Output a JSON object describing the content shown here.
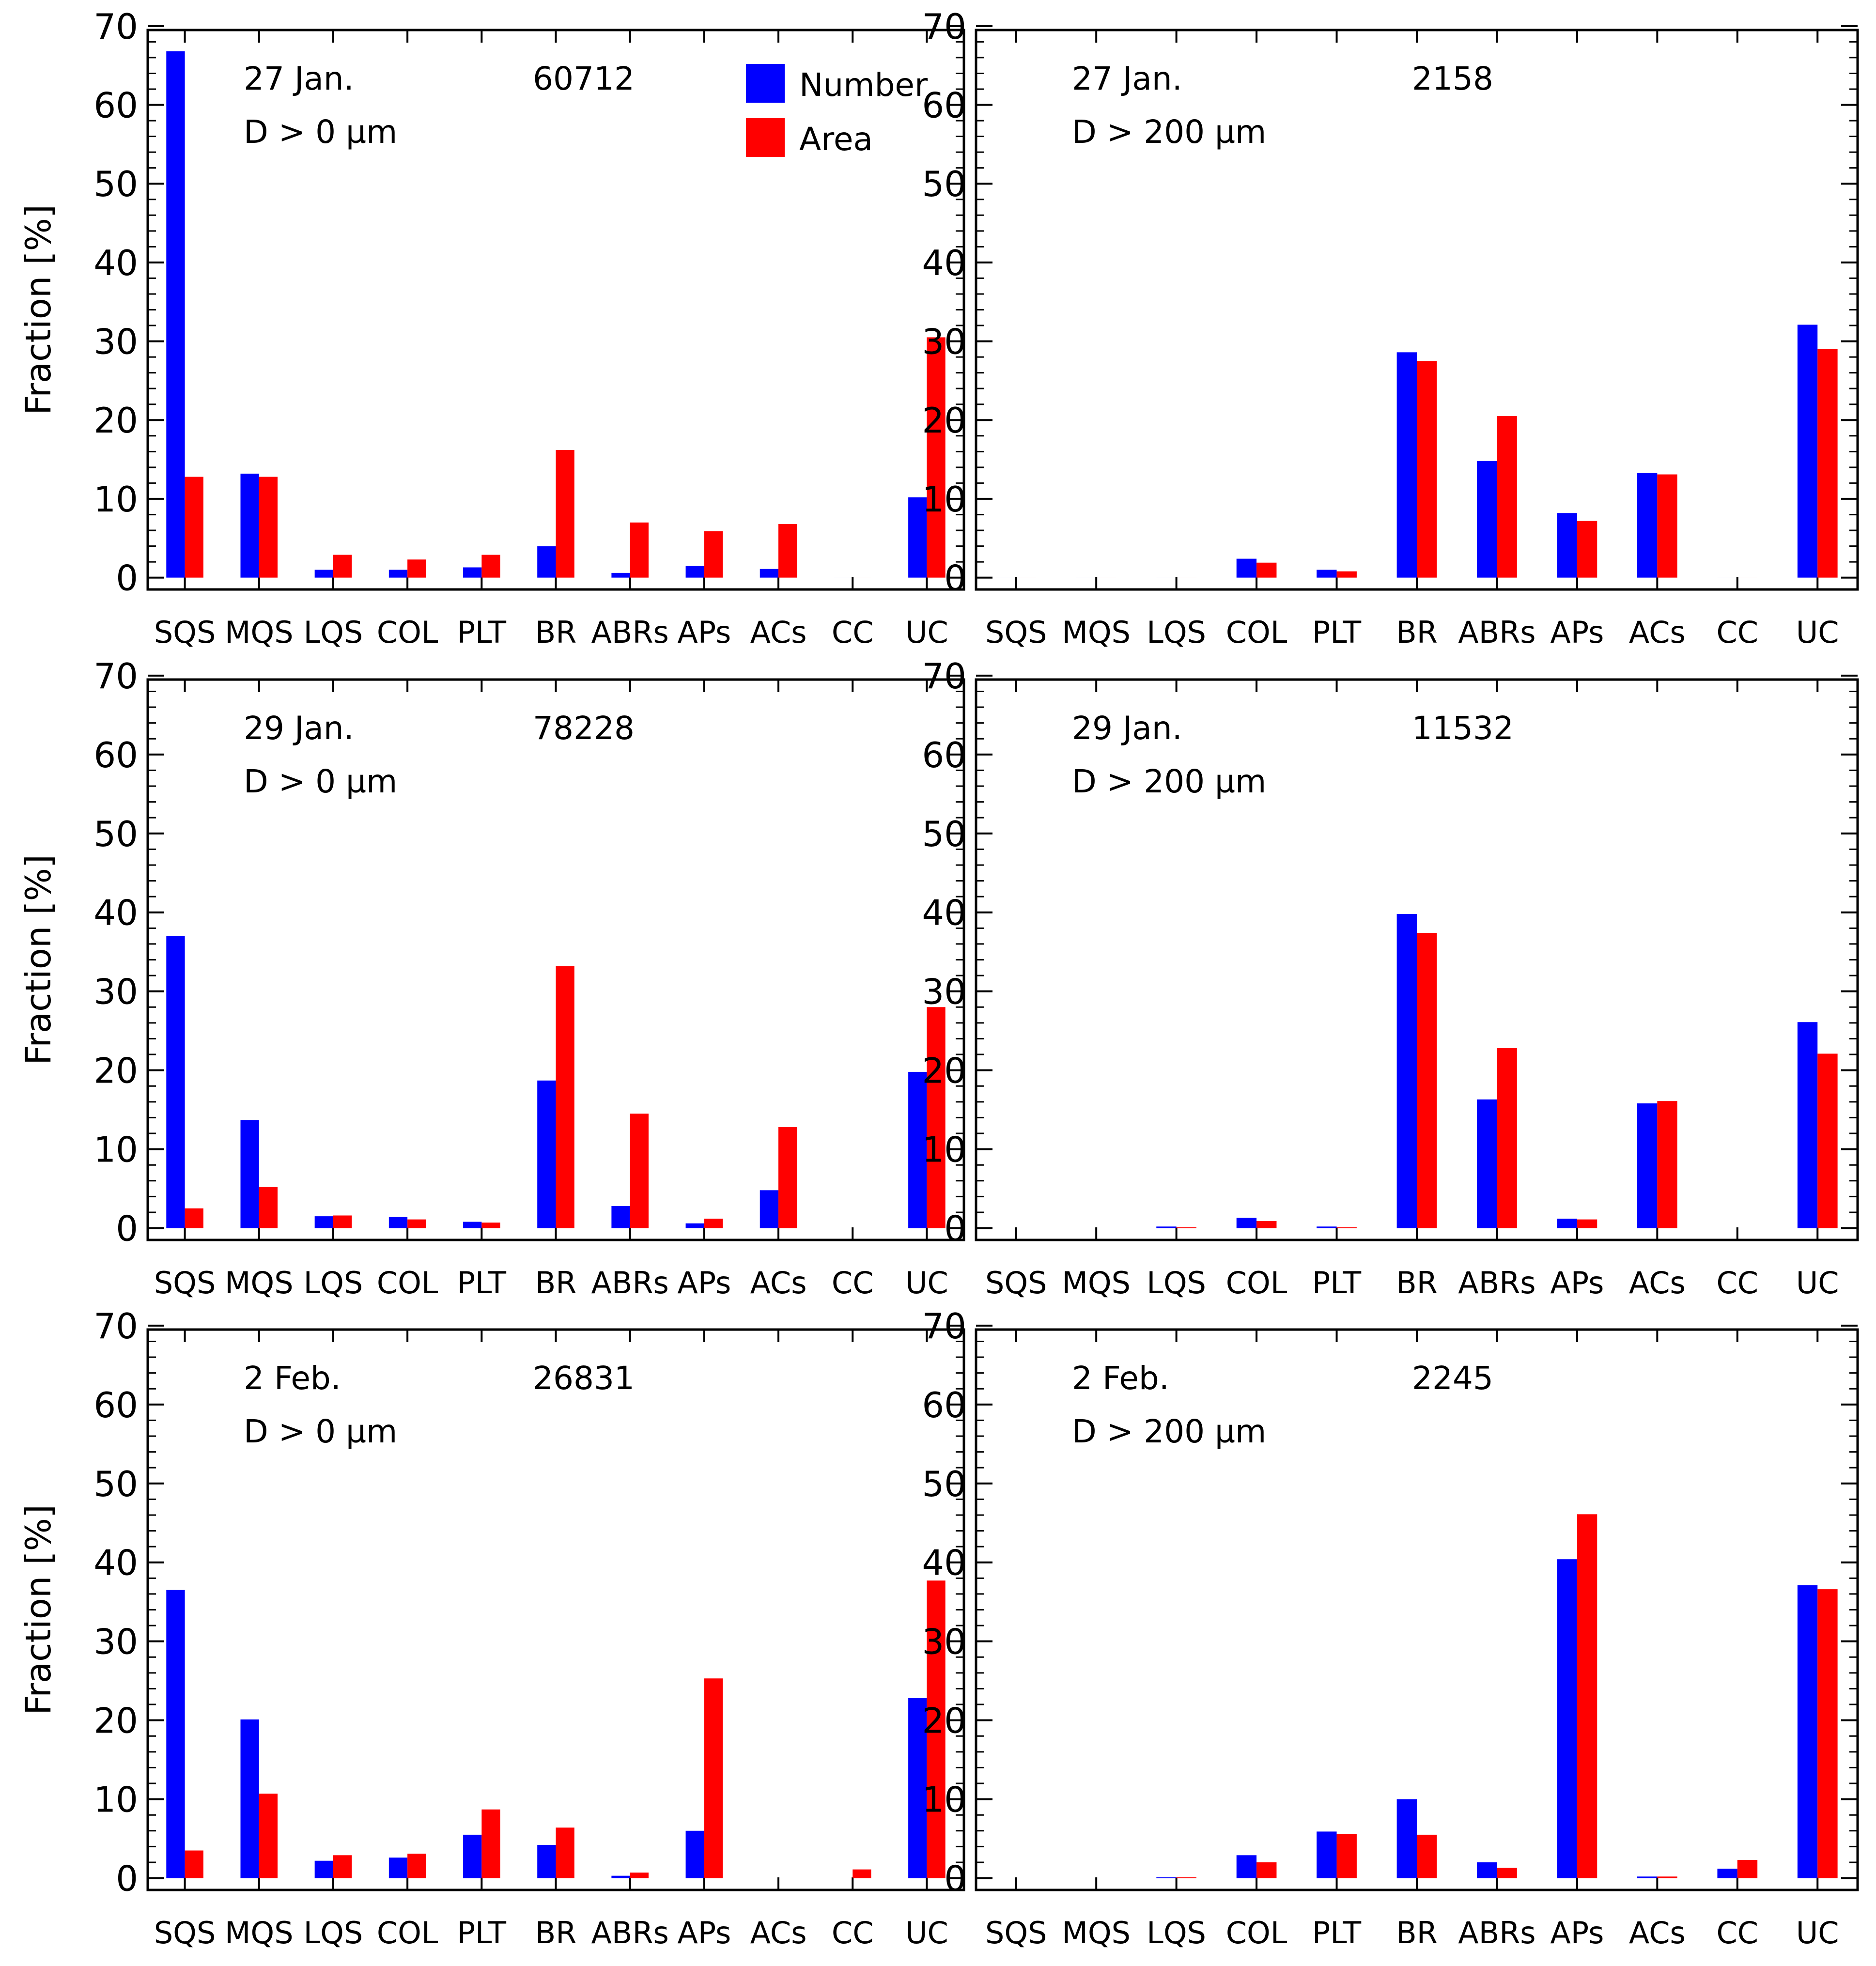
{
  "figure": {
    "colors": {
      "number": "#0000ff",
      "area": "#ff0000",
      "axes": "#000000"
    },
    "legend": {
      "placement": "top-right of first panel",
      "entries": [
        "Number",
        "Area"
      ]
    }
  },
  "chart_data": [
    {
      "type": "bar",
      "panel": "row 1, left",
      "date": "27 Jan.",
      "size_cut": "D > 0 µm",
      "count": "60712",
      "categories": [
        "SQS",
        "MQS",
        "LQS",
        "COL",
        "PLT",
        "BR",
        "ABRs",
        "APs",
        "ACs",
        "CC",
        "UC"
      ],
      "series": [
        {
          "name": "Number",
          "values": [
            66.8,
            13.2,
            1.0,
            1.0,
            1.3,
            4.0,
            0.6,
            1.5,
            1.1,
            0.0,
            10.2
          ]
        },
        {
          "name": "Area",
          "values": [
            12.8,
            12.8,
            2.9,
            2.3,
            2.9,
            16.2,
            7.0,
            5.9,
            6.8,
            0.0,
            30.5
          ]
        }
      ],
      "ylabel": "Fraction [%]",
      "yticks": [
        "0",
        "10",
        "20",
        "30",
        "40",
        "50",
        "60",
        "70"
      ],
      "ylim": [
        -1.5,
        69.5
      ]
    },
    {
      "type": "bar",
      "panel": "row 1, right",
      "date": "27 Jan.",
      "size_cut": "D > 200 µm",
      "count": "2158",
      "categories": [
        "SQS",
        "MQS",
        "LQS",
        "COL",
        "PLT",
        "BR",
        "ABRs",
        "APs",
        "ACs",
        "CC",
        "UC"
      ],
      "series": [
        {
          "name": "Number",
          "values": [
            0.0,
            0.0,
            0.0,
            2.4,
            1.0,
            28.6,
            14.8,
            8.2,
            13.3,
            0.0,
            32.1
          ]
        },
        {
          "name": "Area",
          "values": [
            0.0,
            0.0,
            0.0,
            1.9,
            0.8,
            27.5,
            20.5,
            7.2,
            13.1,
            0.0,
            29.0
          ]
        }
      ],
      "ylabel": "",
      "yticks": [
        "0",
        "10",
        "20",
        "30",
        "40",
        "50",
        "60",
        "70"
      ],
      "ylim": [
        -1.5,
        69.5
      ]
    },
    {
      "type": "bar",
      "panel": "row 2, left",
      "date": "29 Jan.",
      "size_cut": "D > 0 µm",
      "count": "78228",
      "categories": [
        "SQS",
        "MQS",
        "LQS",
        "COL",
        "PLT",
        "BR",
        "ABRs",
        "APs",
        "ACs",
        "CC",
        "UC"
      ],
      "series": [
        {
          "name": "Number",
          "values": [
            37.0,
            13.7,
            1.5,
            1.4,
            0.8,
            18.7,
            2.8,
            0.6,
            4.8,
            0.0,
            19.8
          ]
        },
        {
          "name": "Area",
          "values": [
            2.5,
            5.2,
            1.6,
            1.1,
            0.7,
            33.2,
            14.5,
            1.2,
            12.8,
            0.0,
            28.0
          ]
        }
      ],
      "ylabel": "Fraction [%]",
      "yticks": [
        "0",
        "10",
        "20",
        "30",
        "40",
        "50",
        "60",
        "70"
      ],
      "ylim": [
        -1.5,
        69.5
      ]
    },
    {
      "type": "bar",
      "panel": "row 2, right",
      "date": "29 Jan.",
      "size_cut": "D > 200 µm",
      "count": "11532",
      "categories": [
        "SQS",
        "MQS",
        "LQS",
        "COL",
        "PLT",
        "BR",
        "ABRs",
        "APs",
        "ACs",
        "CC",
        "UC"
      ],
      "series": [
        {
          "name": "Number",
          "values": [
            0.0,
            0.0,
            0.2,
            1.3,
            0.2,
            39.8,
            16.3,
            1.2,
            15.8,
            0.0,
            26.1
          ]
        },
        {
          "name": "Area",
          "values": [
            0.0,
            0.0,
            0.1,
            0.9,
            0.1,
            37.4,
            22.8,
            1.1,
            16.1,
            0.0,
            22.1
          ]
        }
      ],
      "ylabel": "",
      "yticks": [
        "0",
        "10",
        "20",
        "30",
        "40",
        "50",
        "60",
        "70"
      ],
      "ylim": [
        -1.5,
        69.5
      ]
    },
    {
      "type": "bar",
      "panel": "row 3, left",
      "date": "2 Feb.",
      "size_cut": "D > 0 µm",
      "count": "26831",
      "categories": [
        "SQS",
        "MQS",
        "LQS",
        "COL",
        "PLT",
        "BR",
        "ABRs",
        "APs",
        "ACs",
        "CC",
        "UC"
      ],
      "series": [
        {
          "name": "Number",
          "values": [
            36.5,
            20.1,
            2.2,
            2.6,
            5.5,
            4.2,
            0.3,
            6.0,
            0.0,
            0.0,
            22.8
          ]
        },
        {
          "name": "Area",
          "values": [
            3.5,
            10.7,
            2.9,
            3.1,
            8.7,
            6.4,
            0.7,
            25.3,
            0.0,
            1.1,
            37.7
          ]
        }
      ],
      "ylabel": "Fraction [%]",
      "yticks": [
        "0",
        "10",
        "20",
        "30",
        "40",
        "50",
        "60",
        "70"
      ],
      "ylim": [
        -1.5,
        69.5
      ]
    },
    {
      "type": "bar",
      "panel": "row 3, right",
      "date": "2 Feb.",
      "size_cut": "D > 200 µm",
      "count": "2245",
      "categories": [
        "SQS",
        "MQS",
        "LQS",
        "COL",
        "PLT",
        "BR",
        "ABRs",
        "APs",
        "ACs",
        "CC",
        "UC"
      ],
      "series": [
        {
          "name": "Number",
          "values": [
            0.0,
            0.0,
            0.1,
            2.9,
            5.9,
            10.0,
            2.0,
            40.4,
            0.2,
            1.2,
            37.1
          ]
        },
        {
          "name": "Area",
          "values": [
            0.0,
            0.0,
            0.1,
            2.0,
            5.6,
            5.5,
            1.3,
            46.1,
            0.2,
            2.3,
            36.6
          ]
        }
      ],
      "ylabel": "",
      "yticks": [
        "0",
        "10",
        "20",
        "30",
        "40",
        "50",
        "60",
        "70"
      ],
      "ylim": [
        -1.5,
        69.5
      ]
    }
  ]
}
